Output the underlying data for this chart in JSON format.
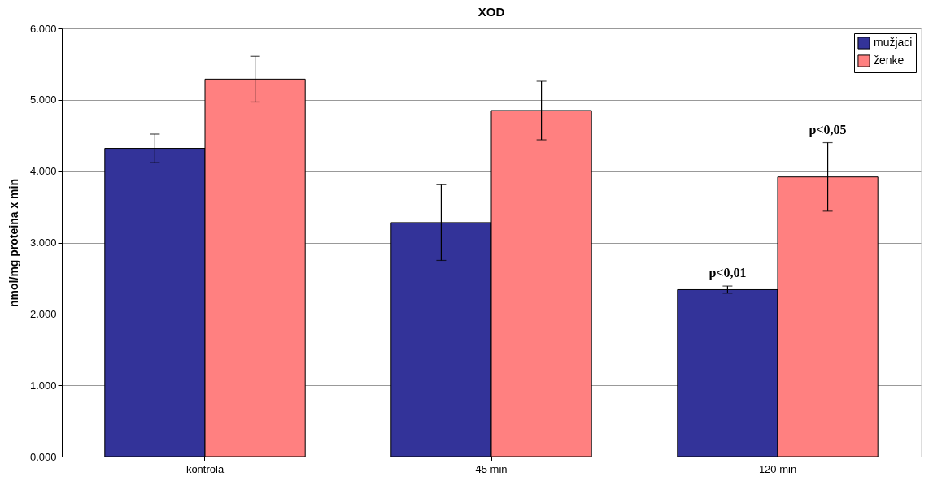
{
  "chart_data": {
    "type": "bar",
    "title": "XOD",
    "ylabel": "nmol/mg proteina x min",
    "categories": [
      "kontrola",
      "45 min",
      "120 min"
    ],
    "series": [
      {
        "name": "mužjaci",
        "color": "#333399",
        "values": [
          4320,
          3280,
          2340
        ],
        "errors": [
          200,
          530,
          50
        ]
      },
      {
        "name": "ženke",
        "color": "#ff8080",
        "values": [
          5290,
          4850,
          3920
        ],
        "errors": [
          320,
          410,
          480
        ]
      }
    ],
    "ylim": [
      0,
      6000
    ],
    "yticks": [
      {
        "value": 0,
        "label": "0.000"
      },
      {
        "value": 1000,
        "label": "1.000"
      },
      {
        "value": 2000,
        "label": "2.000"
      },
      {
        "value": 3000,
        "label": "3.000"
      },
      {
        "value": 4000,
        "label": "4.000"
      },
      {
        "value": 5000,
        "label": "5.000"
      },
      {
        "value": 6000,
        "label": "6.000"
      }
    ],
    "annotations": [
      "p<0,01",
      "p<0,05"
    ],
    "grid": "y",
    "legend": "top right"
  }
}
